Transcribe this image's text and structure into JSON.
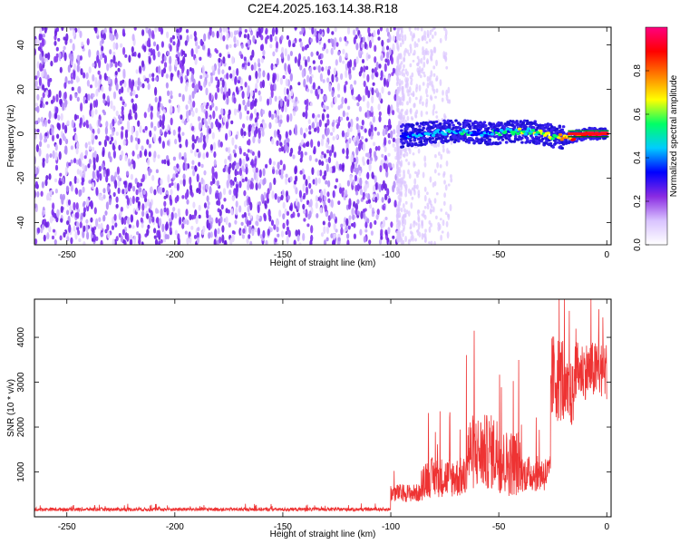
{
  "title": "C2E4.2025.163.14.38.R18",
  "chart_data": [
    {
      "type": "heatmap",
      "xlabel": "Height of straight line (km)",
      "ylabel": "Frequency (Hz)",
      "xlim": [
        -265,
        2
      ],
      "ylim": [
        -50,
        48
      ],
      "x_ticks": [
        -250,
        -200,
        -150,
        -100,
        -50,
        0
      ],
      "y_ticks": [
        -40,
        -20,
        0,
        20,
        40
      ],
      "noise_region_x": [
        -265,
        -97
      ],
      "noise_color": "#7a2ff0",
      "signal_track": {
        "x": [
          -95,
          -85,
          -75,
          -65,
          -55,
          -45,
          -35,
          -25,
          -18,
          -10,
          0
        ],
        "y": [
          -1,
          0,
          1,
          1,
          0,
          1,
          1,
          -1,
          -2,
          0,
          0
        ],
        "amplitude": [
          0.3,
          0.35,
          0.4,
          0.45,
          0.4,
          0.5,
          0.55,
          0.6,
          0.75,
          0.95,
          0.98
        ]
      },
      "colorbar": {
        "label": "Normalized spectral amplitude",
        "range": [
          0,
          1
        ],
        "ticks": [
          0.0,
          0.2,
          0.4,
          0.6,
          0.8
        ],
        "tick_labels": [
          "0.0",
          "0.2",
          "0.4",
          "0.6",
          "0.8"
        ],
        "colors": [
          "#ffffff",
          "#d9c3ff",
          "#8a2be2",
          "#0000ff",
          "#00ccff",
          "#00ff66",
          "#ffff00",
          "#ff8000",
          "#ff0000",
          "#ff0080"
        ]
      },
      "grid": false
    },
    {
      "type": "line",
      "xlabel": "Height of straight line (km)",
      "ylabel": "SNR (10 * v/v)",
      "xlim": [
        -265,
        2
      ],
      "ylim": [
        0,
        4850
      ],
      "x_ticks": [
        -250,
        -200,
        -150,
        -100,
        -50,
        0
      ],
      "y_ticks": [
        1000,
        2000,
        3000,
        4000
      ],
      "series": [
        {
          "color": "#ee3333",
          "segments": [
            {
              "x_range": [
                -265,
                -100
              ],
              "base": 150,
              "noise": 80
            },
            {
              "x_range": [
                -100,
                -85
              ],
              "base": 450,
              "noise": 400
            },
            {
              "x_range": [
                -85,
                -65
              ],
              "base": 700,
              "noise": 900
            },
            {
              "x_range": [
                -65,
                -50
              ],
              "base": 1100,
              "noise": 1700
            },
            {
              "x_range": [
                -50,
                -40
              ],
              "base": 900,
              "noise": 1500
            },
            {
              "x_range": [
                -40,
                -26
              ],
              "base": 800,
              "noise": 800
            },
            {
              "x_range": [
                -26,
                -20
              ],
              "base": 2700,
              "noise": 2000
            },
            {
              "x_range": [
                -20,
                -15
              ],
              "base": 2400,
              "noise": 1500
            },
            {
              "x_range": [
                -15,
                0
              ],
              "base": 3000,
              "noise": 1300
            }
          ]
        }
      ],
      "grid": false
    }
  ]
}
